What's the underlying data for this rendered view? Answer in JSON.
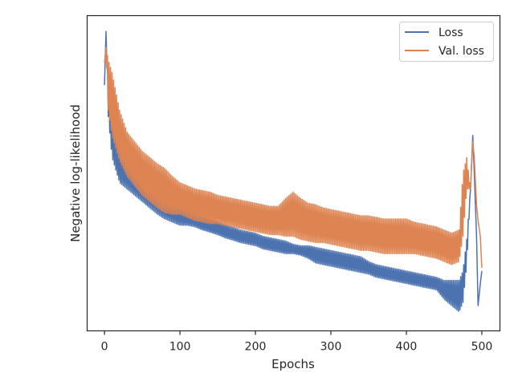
{
  "chart_data": {
    "type": "line",
    "xlabel": "Epochs",
    "ylabel": "Negative log-likelihood",
    "xlim": [
      -23,
      524
    ],
    "ylim": [
      0.0,
      1.0
    ],
    "y_ticks_shown": false,
    "x_ticks": [
      0,
      100,
      200,
      300,
      400,
      500
    ],
    "x_tick_labels": [
      "0",
      "100",
      "200",
      "300",
      "400",
      "500"
    ],
    "grid": false,
    "legend_position": "top-right",
    "series": [
      {
        "name": "Loss",
        "color": "#4c72b0",
        "x": [
          0,
          2,
          5,
          10,
          20,
          30,
          40,
          50,
          60,
          70,
          80,
          90,
          100,
          110,
          120,
          130,
          140,
          150,
          160,
          170,
          180,
          190,
          200,
          210,
          220,
          230,
          240,
          250,
          260,
          270,
          280,
          290,
          300,
          310,
          320,
          330,
          340,
          350,
          360,
          370,
          380,
          390,
          400,
          410,
          420,
          430,
          440,
          450,
          460,
          470,
          475,
          480,
          485,
          488,
          490,
          493,
          495,
          498,
          500
        ],
        "values": [
          0.78,
          0.95,
          0.72,
          0.6,
          0.52,
          0.5,
          0.47,
          0.45,
          0.43,
          0.41,
          0.395,
          0.38,
          0.365,
          0.36,
          0.35,
          0.34,
          0.333,
          0.325,
          0.315,
          0.308,
          0.3,
          0.295,
          0.29,
          0.28,
          0.275,
          0.27,
          0.265,
          0.26,
          0.255,
          0.25,
          0.24,
          0.235,
          0.23,
          0.225,
          0.22,
          0.215,
          0.21,
          0.2,
          0.19,
          0.185,
          0.18,
          0.175,
          0.17,
          0.165,
          0.16,
          0.155,
          0.15,
          0.13,
          0.12,
          0.11,
          0.14,
          0.25,
          0.45,
          0.62,
          0.5,
          0.3,
          0.08,
          0.15,
          0.19
        ],
        "oscillation_amplitude": [
          0.0,
          0.0,
          0.04,
          0.05,
          0.05,
          0.05,
          0.04,
          0.04,
          0.04,
          0.04,
          0.04,
          0.035,
          0.03,
          0.025,
          0.02,
          0.02,
          0.02,
          0.02,
          0.02,
          0.02,
          0.02,
          0.02,
          0.02,
          0.02,
          0.02,
          0.02,
          0.02,
          0.015,
          0.015,
          0.02,
          0.025,
          0.025,
          0.025,
          0.025,
          0.025,
          0.025,
          0.025,
          0.02,
          0.02,
          0.02,
          0.02,
          0.02,
          0.02,
          0.02,
          0.02,
          0.02,
          0.02,
          0.03,
          0.04,
          0.05,
          0.05,
          0.04,
          0.0,
          0.0,
          0.0,
          0.0,
          0.0,
          0.0,
          0.0
        ]
      },
      {
        "name": "Val. loss",
        "color": "#dd8452",
        "x": [
          0,
          2,
          5,
          10,
          20,
          30,
          40,
          50,
          60,
          70,
          80,
          90,
          100,
          110,
          120,
          130,
          140,
          150,
          160,
          170,
          180,
          190,
          200,
          210,
          220,
          230,
          240,
          250,
          260,
          270,
          280,
          290,
          300,
          310,
          320,
          330,
          340,
          350,
          360,
          370,
          380,
          390,
          400,
          410,
          420,
          430,
          440,
          450,
          460,
          470,
          475,
          480,
          485,
          488,
          490,
          493,
          495,
          498,
          500
        ],
        "values": [
          0.85,
          0.9,
          0.78,
          0.72,
          0.62,
          0.56,
          0.53,
          0.5,
          0.48,
          0.46,
          0.445,
          0.43,
          0.42,
          0.41,
          0.4,
          0.395,
          0.39,
          0.385,
          0.38,
          0.375,
          0.37,
          0.365,
          0.36,
          0.355,
          0.35,
          0.35,
          0.36,
          0.37,
          0.355,
          0.345,
          0.34,
          0.335,
          0.33,
          0.325,
          0.32,
          0.315,
          0.31,
          0.31,
          0.305,
          0.3,
          0.3,
          0.3,
          0.3,
          0.295,
          0.29,
          0.285,
          0.28,
          0.27,
          0.26,
          0.27,
          0.4,
          0.5,
          0.45,
          0.6,
          0.55,
          0.4,
          0.35,
          0.3,
          0.2
        ],
        "oscillation_amplitude": [
          0.0,
          0.0,
          0.08,
          0.1,
          0.08,
          0.07,
          0.07,
          0.07,
          0.07,
          0.07,
          0.07,
          0.06,
          0.05,
          0.05,
          0.05,
          0.05,
          0.05,
          0.045,
          0.045,
          0.045,
          0.045,
          0.045,
          0.045,
          0.045,
          0.045,
          0.045,
          0.06,
          0.07,
          0.065,
          0.06,
          0.06,
          0.055,
          0.055,
          0.055,
          0.055,
          0.055,
          0.055,
          0.055,
          0.055,
          0.055,
          0.055,
          0.055,
          0.055,
          0.05,
          0.05,
          0.05,
          0.05,
          0.05,
          0.05,
          0.05,
          0.1,
          0.05,
          0.0,
          0.0,
          0.0,
          0.0,
          0.0,
          0.0,
          0.0
        ]
      }
    ]
  }
}
